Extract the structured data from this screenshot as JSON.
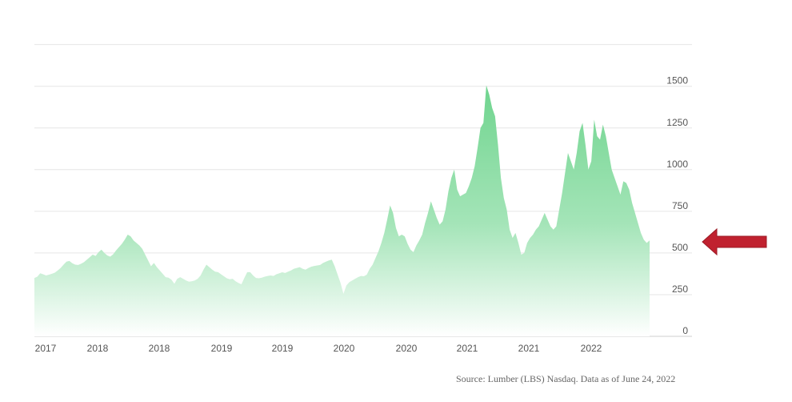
{
  "chart_data": {
    "type": "area",
    "title": "",
    "xlabel": "",
    "ylabel": "",
    "x_tick_labels": [
      "2017",
      "2018",
      "2018",
      "2019",
      "2019",
      "2020",
      "2020",
      "2021",
      "2021",
      "2022"
    ],
    "y_ticks": [
      0,
      250,
      500,
      750,
      1000,
      1250,
      1500
    ],
    "ylim": [
      0,
      1750
    ],
    "grid": true,
    "legend": "none",
    "fill_color": "#7fd99a",
    "series": [
      {
        "values": [
          350,
          358,
          378,
          372,
          365,
          370,
          375,
          382,
          395,
          410,
          430,
          448,
          452,
          438,
          430,
          428,
          435,
          445,
          460,
          475,
          490,
          482,
          505,
          520,
          500,
          485,
          478,
          492,
          515,
          535,
          555,
          580,
          610,
          600,
          575,
          560,
          545,
          525,
          490,
          455,
          420,
          440,
          415,
          395,
          375,
          355,
          352,
          340,
          315,
          345,
          355,
          345,
          335,
          328,
          330,
          335,
          345,
          365,
          400,
          430,
          415,
          400,
          388,
          385,
          372,
          360,
          348,
          342,
          345,
          330,
          320,
          312,
          350,
          385,
          385,
          365,
          350,
          348,
          352,
          358,
          362,
          365,
          362,
          372,
          378,
          384,
          380,
          388,
          395,
          405,
          410,
          415,
          405,
          400,
          410,
          418,
          422,
          425,
          428,
          440,
          448,
          455,
          460,
          420,
          370,
          320,
          255,
          305,
          325,
          335,
          345,
          355,
          362,
          360,
          370,
          405,
          430,
          470,
          510,
          560,
          620,
          700,
          785,
          740,
          650,
          600,
          610,
          600,
          555,
          520,
          505,
          545,
          575,
          610,
          680,
          740,
          810,
          760,
          710,
          670,
          690,
          760,
          870,
          950,
          1000,
          880,
          840,
          850,
          860,
          900,
          950,
          1020,
          1130,
          1250,
          1280,
          1505,
          1450,
          1370,
          1320,
          1150,
          950,
          830,
          760,
          640,
          590,
          620,
          560,
          490,
          500,
          560,
          590,
          610,
          640,
          660,
          700,
          740,
          700,
          660,
          640,
          660,
          760,
          860,
          980,
          1100,
          1050,
          1000,
          1100,
          1230,
          1280,
          1150,
          1000,
          1050,
          1300,
          1200,
          1180,
          1270,
          1200,
          1100,
          1000,
          950,
          900,
          850,
          930,
          920,
          880,
          800,
          740,
          680,
          620,
          580,
          560,
          575
        ]
      }
    ],
    "source_note": "Source: Lumber  (LBS) Nasdaq. Data as of June  24, 2022",
    "annotation": "red-arrow-pointing-left"
  }
}
